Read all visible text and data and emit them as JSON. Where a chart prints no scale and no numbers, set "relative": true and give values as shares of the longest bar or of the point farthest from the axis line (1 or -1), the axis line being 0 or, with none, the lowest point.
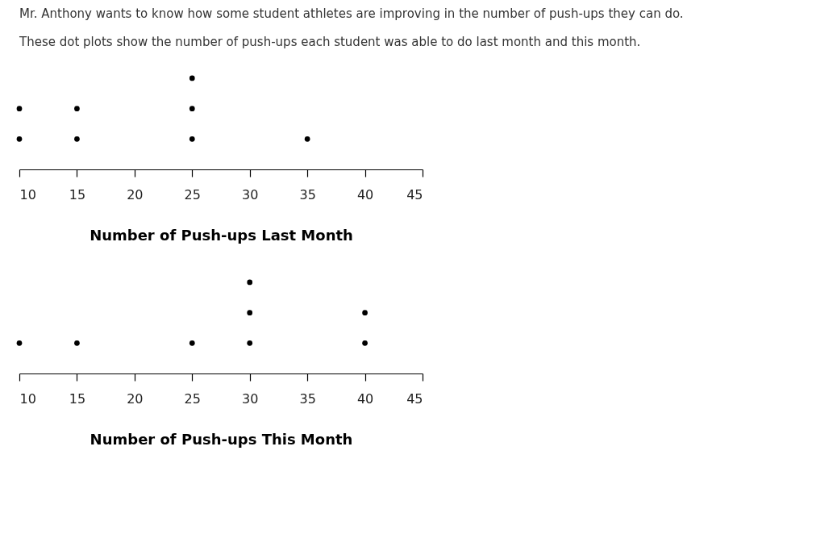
{
  "chart_data": [
    {
      "type": "scatter",
      "title": "Mr. Anthony wants to know how some student athletes are improving in the number of push-ups they can do.",
      "subtitle": "These dot plots show the number of push-ups each student was able to do last month and this month.",
      "xlabel": "Number of Push-ups Last Month",
      "xlim": [
        10,
        45
      ],
      "xticks": [
        10,
        15,
        20,
        25,
        30,
        35,
        40,
        45
      ],
      "relative": true,
      "tick_labels": "x",
      "marker": "circle",
      "series": [
        {
          "color": "#000000",
          "x": [
            10,
            10,
            15,
            15,
            25,
            25,
            25,
            35
          ],
          "values": [
            0.3333,
            0.6667,
            0.3333,
            0.6667,
            0.3333,
            0.6667,
            1,
            0.3333
          ]
        }
      ]
    },
    {
      "type": "scatter",
      "xlabel": "Number of Push-ups This Month",
      "xlim": [
        10,
        45
      ],
      "xticks": [
        10,
        15,
        20,
        25,
        30,
        35,
        40,
        45
      ],
      "relative": true,
      "tick_labels": "x",
      "marker": "circle",
      "series": [
        {
          "color": "#000000",
          "x": [
            10,
            15,
            25,
            30,
            30,
            30,
            40,
            40
          ],
          "values": [
            0.3333,
            0.3333,
            0.3333,
            0.3333,
            0.6667,
            1,
            0.3333,
            0.6667
          ]
        }
      ]
    }
  ]
}
